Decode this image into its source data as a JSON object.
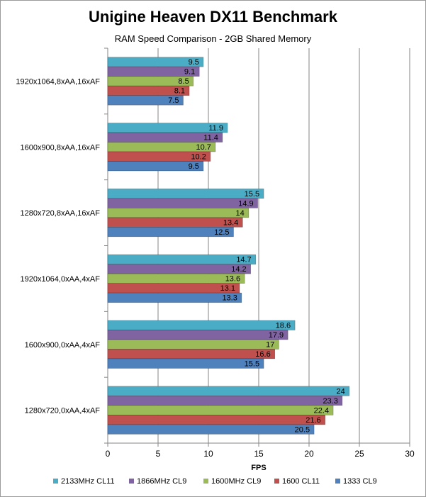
{
  "chart_data": {
    "type": "bar",
    "orientation": "horizontal",
    "title": "Unigine Heaven DX11 Benchmark",
    "subtitle": "RAM Speed Comparison - 2GB Shared Memory",
    "xlabel": "FPS",
    "ylabel": "",
    "xlim": [
      0,
      30
    ],
    "xticks": [
      0,
      5,
      10,
      15,
      20,
      25,
      30
    ],
    "grid": true,
    "legend_position": "bottom",
    "categories": [
      "1920x1064,8xAA,16xAF",
      "1600x900,8xAA,16xAF",
      "1280x720,8xAA,16xAF",
      "1920x1064,0xAA,4xAF",
      "1600x900,0xAA,4xAF",
      "1280x720,0xAA,4xAF"
    ],
    "series": [
      {
        "name": "2133MHz CL11",
        "color": "#4bacc6",
        "values": [
          9.5,
          11.9,
          15.5,
          14.7,
          18.6,
          24
        ]
      },
      {
        "name": "1866MHz CL9",
        "color": "#8064a2",
        "values": [
          9.1,
          11.4,
          14.9,
          14.2,
          17.9,
          23.3
        ]
      },
      {
        "name": "1600MHz CL9",
        "color": "#9bbb59",
        "values": [
          8.5,
          10.7,
          14,
          13.6,
          17,
          22.4
        ]
      },
      {
        "name": "1600 CL11",
        "color": "#c0504d",
        "values": [
          8.1,
          10.2,
          13.4,
          13.1,
          16.6,
          21.6
        ]
      },
      {
        "name": "1333 CL9",
        "color": "#4f81bd",
        "values": [
          7.5,
          9.5,
          12.5,
          13.3,
          15.5,
          20.5
        ]
      }
    ]
  }
}
